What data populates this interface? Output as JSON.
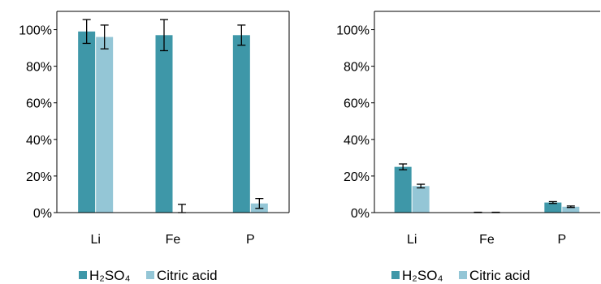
{
  "colors": {
    "h2so4": "#3E97A8",
    "citric": "#94C6D6",
    "axis": "#000000"
  },
  "chart_data": [
    {
      "type": "bar",
      "categories": [
        "Li",
        "Fe",
        "P"
      ],
      "ylim": [
        0,
        1.1
      ],
      "yticks": [
        0,
        0.2,
        0.4,
        0.6,
        0.8,
        1.0
      ],
      "ytick_labels": [
        "0%",
        "20%",
        "40%",
        "60%",
        "80%",
        "100%"
      ],
      "series": [
        {
          "name": "H₂SO₄",
          "values": [
            0.99,
            0.97,
            0.97
          ],
          "errors": [
            0.065,
            0.085,
            0.055
          ]
        },
        {
          "name": "Citric acid",
          "values": [
            0.96,
            0.0,
            0.05
          ],
          "errors": [
            0.065,
            0.045,
            0.027
          ]
        }
      ],
      "legend": "bottom"
    },
    {
      "type": "bar",
      "categories": [
        "Li",
        "Fe",
        "P"
      ],
      "ylim": [
        0,
        1.1
      ],
      "yticks": [
        0,
        0.2,
        0.4,
        0.6,
        0.8,
        1.0
      ],
      "ytick_labels": [
        "0%",
        "20%",
        "40%",
        "60%",
        "80%",
        "100%"
      ],
      "series": [
        {
          "name": "H₂SO₄",
          "values": [
            0.25,
            0.0,
            0.055
          ],
          "errors": [
            0.016,
            0.002,
            0.005
          ]
        },
        {
          "name": "Citric acid",
          "values": [
            0.145,
            0.0,
            0.032
          ],
          "errors": [
            0.01,
            0.002,
            0.004
          ]
        }
      ],
      "legend": "bottom"
    }
  ]
}
